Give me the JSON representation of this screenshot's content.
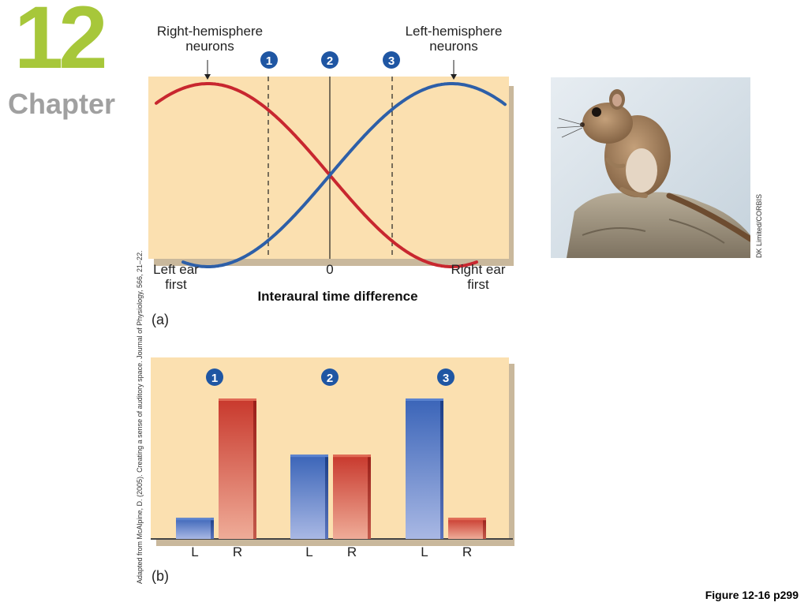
{
  "chapter": {
    "number": "12",
    "word": "Chapter"
  },
  "figure_caption": "Figure 12-16 p299",
  "credits": {
    "source": "Adapted from McAlpine, D. (2005). Creating a sense of auditory space. Journal of Physiology, 566, 21–22.",
    "photo": "DK Limited/CORBIS"
  },
  "colors": {
    "red": "#c8272f",
    "blue": "#2d5fa8",
    "panel_bg": "#fbe0b0",
    "chapter_green": "#a7c73a",
    "chapter_gray": "#a0a0a0",
    "badge": "#1f56a3"
  },
  "chart_data": [
    {
      "type": "line",
      "panel": "(a)",
      "xlabel": "Interaural time difference",
      "x_tick_labels": {
        "left": "Left ear first",
        "center": "0",
        "right": "Right ear first"
      },
      "series_labels": {
        "red": "Right-hemisphere neurons",
        "blue": "Left-hemisphere neurons"
      },
      "markers": [
        {
          "label": "1",
          "position": "left of center"
        },
        {
          "label": "2",
          "position": "center"
        },
        {
          "label": "3",
          "position": "right of center"
        }
      ],
      "series": [
        {
          "name": "Right-hemisphere neurons",
          "color": "red",
          "shape": "sinusoid",
          "peak": "left",
          "trough": "right"
        },
        {
          "name": "Left-hemisphere neurons",
          "color": "blue",
          "shape": "sinusoid",
          "peak": "right",
          "trough": "left"
        }
      ],
      "grid": false
    },
    {
      "type": "bar",
      "panel": "(b)",
      "groups": [
        {
          "label": "1",
          "bars": [
            {
              "cat": "L",
              "value": 0.15
            },
            {
              "cat": "R",
              "value": 1.0
            }
          ]
        },
        {
          "label": "2",
          "bars": [
            {
              "cat": "L",
              "value": 0.6
            },
            {
              "cat": "R",
              "value": 0.6
            }
          ]
        },
        {
          "label": "3",
          "bars": [
            {
              "cat": "L",
              "value": 1.0
            },
            {
              "cat": "R",
              "value": 0.15
            }
          ]
        }
      ],
      "bar_colors": {
        "L": "blue",
        "R": "red"
      },
      "ylim": [
        0,
        1
      ],
      "grid": false
    }
  ]
}
